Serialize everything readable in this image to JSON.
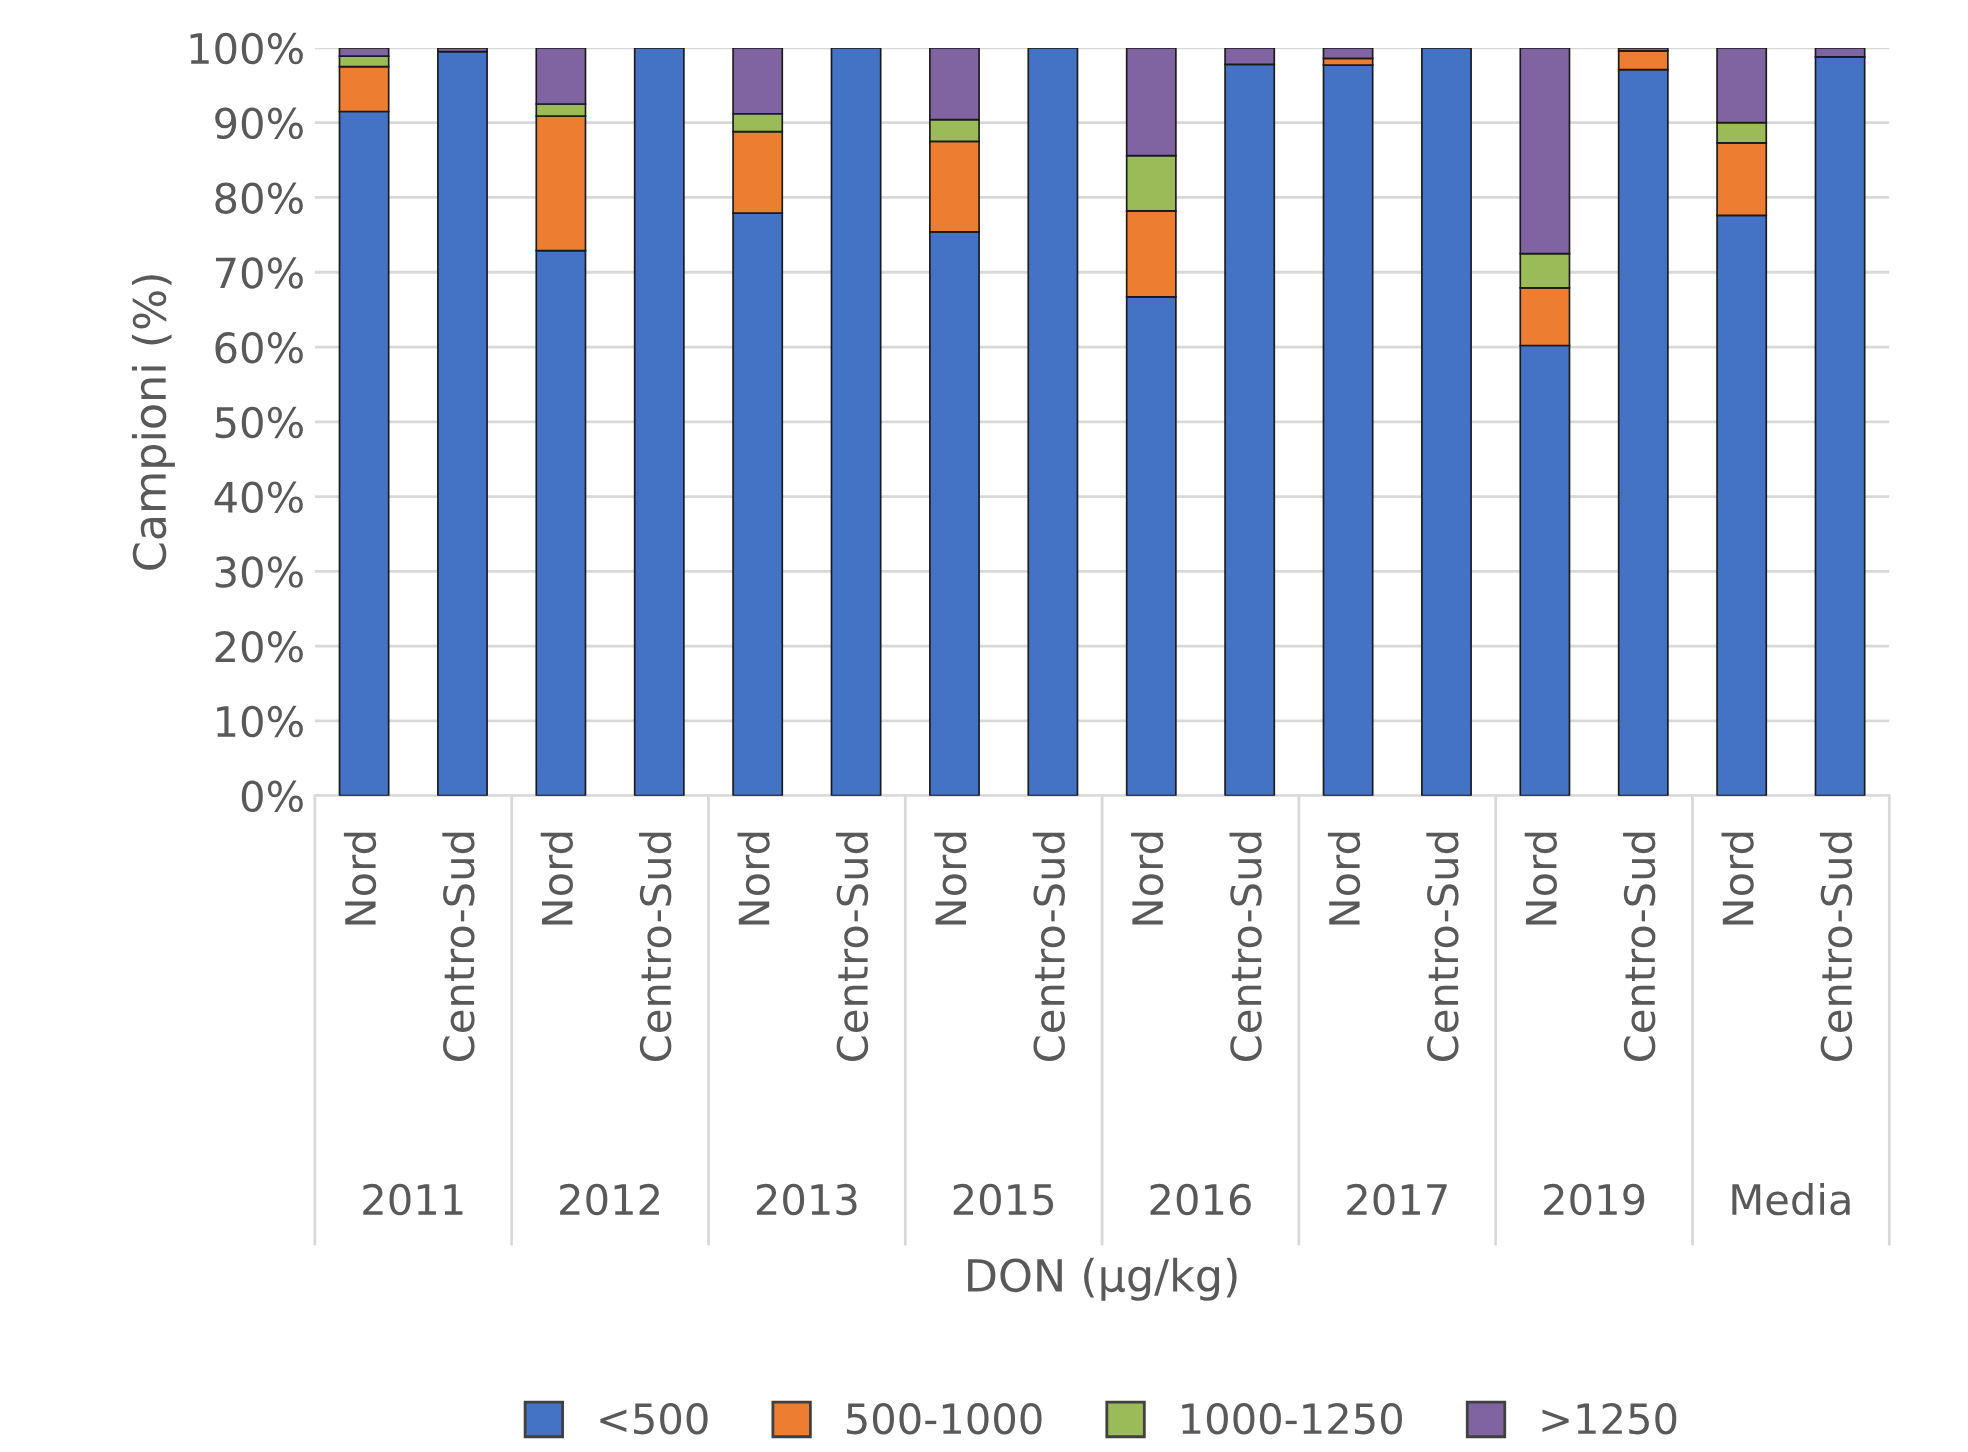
{
  "chart_data": {
    "type": "bar",
    "stacked": true,
    "xlabel": "DON (µg/kg)",
    "ylabel": "Campioni (%)",
    "categories": [
      "Nord",
      "Centro-Sud",
      "Nord",
      "Centro-Sud",
      "Nord",
      "Centro-Sud",
      "Nord",
      "Centro-Sud",
      "Nord",
      "Centro-Sud",
      "Nord",
      "Centro-Sud",
      "Nord",
      "Centro-Sud",
      "Nord",
      "Centro-Sud"
    ],
    "annotations": [
      "2011",
      "2012",
      "2013",
      "2015",
      "2016",
      "2017",
      "2019",
      "Media"
    ],
    "series": [
      {
        "name": "<500",
        "color": "#4472c4",
        "values": [
          91.5,
          99.5,
          72.9,
          100,
          77.9,
          100,
          75.4,
          100,
          66.7,
          97.8,
          97.7,
          100,
          60.2,
          97.1,
          77.6,
          98.8
        ]
      },
      {
        "name": "500-1000",
        "color": "#ed7d31",
        "values": [
          6.0,
          null,
          18.0,
          null,
          10.9,
          null,
          12.1,
          null,
          11.5,
          null,
          0.9,
          null,
          7.7,
          2.5,
          9.7,
          null
        ]
      },
      {
        "name": "1000-1250",
        "color": "#9bbb59",
        "values": [
          1.4,
          null,
          1.6,
          null,
          2.4,
          null,
          2.9,
          null,
          7.4,
          null,
          null,
          null,
          4.6,
          null,
          2.7,
          null
        ]
      },
      {
        "name": ">1250",
        "color": "#8064a2",
        "values": [
          1.1,
          0.5,
          7.5,
          null,
          8.8,
          null,
          9.6,
          null,
          14.4,
          2.2,
          1.4,
          null,
          27.5,
          0.4,
          10.0,
          1.2
        ]
      }
    ],
    "ylim": [
      0,
      100
    ],
    "yticks": [
      {
        "value": 0,
        "label": "0%"
      },
      {
        "value": 10,
        "label": "10%"
      },
      {
        "value": 20,
        "label": "20%"
      },
      {
        "value": 30,
        "label": "30%"
      },
      {
        "value": 40,
        "label": "40%"
      },
      {
        "value": 50,
        "label": "50%"
      },
      {
        "value": 60,
        "label": "60%"
      },
      {
        "value": 70,
        "label": "70%"
      },
      {
        "value": 80,
        "label": "80%"
      },
      {
        "value": 90,
        "label": "90%"
      },
      {
        "value": 100,
        "label": "100%"
      }
    ],
    "grid": "y",
    "legend": "bottom"
  }
}
